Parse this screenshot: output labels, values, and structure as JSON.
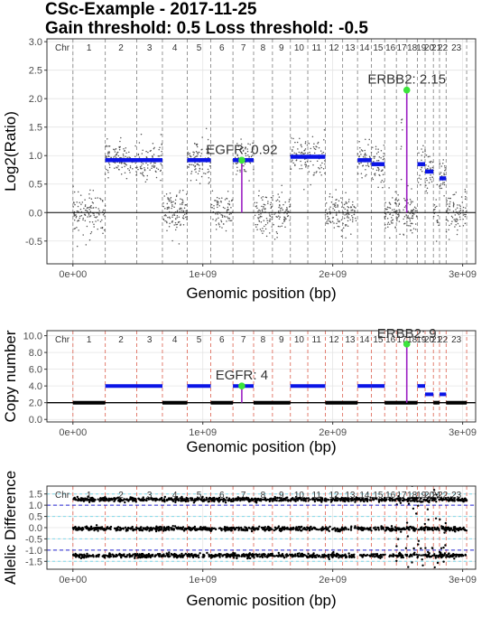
{
  "title_line1": "CSc-Example - 2017-11-25",
  "title_line2": "Gain threshold:  0.5  Loss threshold: -0.5",
  "chart_data": [
    {
      "type": "scatter",
      "panel": "log2ratio",
      "xlabel": "Genomic position (bp)",
      "ylabel": "Log2(Ratio)",
      "xlim": [
        -200000000,
        3100000000
      ],
      "ylim": [
        -0.9,
        3.05
      ],
      "xticks": [
        {
          "value": 0,
          "label": "0e+00"
        },
        {
          "value": 1000000000,
          "label": "1e+09"
        },
        {
          "value": 2000000000,
          "label": "2e+09"
        },
        {
          "value": 3000000000,
          "label": "3e+09"
        }
      ],
      "yticks": [
        {
          "value": -0.5,
          "label": "-0.5"
        },
        {
          "value": 0,
          "label": "0.0"
        },
        {
          "value": 0.5,
          "label": "0.5"
        },
        {
          "value": 1,
          "label": "1.0"
        },
        {
          "value": 1.5,
          "label": "1.5"
        },
        {
          "value": 2,
          "label": "2.0"
        },
        {
          "value": 2.5,
          "label": "2.5"
        },
        {
          "value": 3,
          "label": "3.0"
        }
      ],
      "segments": [
        {
          "start": 0,
          "end": 249000000,
          "value": 0
        },
        {
          "start": 249000000,
          "end": 491000000,
          "value": 0.92
        },
        {
          "start": 491000000,
          "end": 689000000,
          "value": 0.92
        },
        {
          "start": 689000000,
          "end": 880000000,
          "value": 0
        },
        {
          "start": 880000000,
          "end": 1061000000,
          "value": 0.92
        },
        {
          "start": 1061000000,
          "end": 1232000000,
          "value": 0
        },
        {
          "start": 1232000000,
          "end": 1391000000,
          "value": 0.92
        },
        {
          "start": 1391000000,
          "end": 1536000000,
          "value": 0
        },
        {
          "start": 1536000000,
          "end": 1674000000,
          "value": 0
        },
        {
          "start": 1674000000,
          "end": 1808000000,
          "value": 0.98
        },
        {
          "start": 1808000000,
          "end": 1943000000,
          "value": 0.98
        },
        {
          "start": 1943000000,
          "end": 2076000000,
          "value": 0
        },
        {
          "start": 2076000000,
          "end": 2191000000,
          "value": 0
        },
        {
          "start": 2191000000,
          "end": 2298000000,
          "value": 0.92
        },
        {
          "start": 2298000000,
          "end": 2400000000,
          "value": 0.85
        },
        {
          "start": 2400000000,
          "end": 2490000000,
          "value": 0
        },
        {
          "start": 2490000000,
          "end": 2571000000,
          "value": 0
        },
        {
          "start": 2571000000,
          "end": 2652000000,
          "value": 0
        },
        {
          "start": 2652000000,
          "end": 2711000000,
          "value": 0.85
        },
        {
          "start": 2711000000,
          "end": 2775000000,
          "value": 0.72
        },
        {
          "start": 2775000000,
          "end": 2822000000,
          "value": 0
        },
        {
          "start": 2822000000,
          "end": 2873000000,
          "value": 0.6
        },
        {
          "start": 2873000000,
          "end": 3031000000,
          "value": 0
        }
      ],
      "annotations": [
        {
          "label": "EGFR: 0.92",
          "x": 1300000000,
          "y": 0.92
        },
        {
          "label": "ERBB2: 2.15",
          "x": 2570000000,
          "y": 2.15
        }
      ]
    },
    {
      "type": "line",
      "panel": "copy_number",
      "xlabel": "Genomic position (bp)",
      "ylabel": "Copy number",
      "xlim": [
        -200000000,
        3100000000
      ],
      "ylim": [
        -0.3,
        10.6
      ],
      "xticks": [
        {
          "value": 0,
          "label": "0e+00"
        },
        {
          "value": 1000000000,
          "label": "1e+09"
        },
        {
          "value": 2000000000,
          "label": "2e+09"
        },
        {
          "value": 3000000000,
          "label": "3e+09"
        }
      ],
      "yticks": [
        {
          "value": 0,
          "label": "0.0"
        },
        {
          "value": 2,
          "label": "2.0"
        },
        {
          "value": 4,
          "label": "4.0"
        },
        {
          "value": 6,
          "label": "6.0"
        },
        {
          "value": 8,
          "label": "8.0"
        },
        {
          "value": 10,
          "label": "10.0"
        }
      ],
      "baseline": 2,
      "segments": [
        {
          "start": 0,
          "end": 249000000,
          "value": 2
        },
        {
          "start": 249000000,
          "end": 689000000,
          "value": 4
        },
        {
          "start": 689000000,
          "end": 880000000,
          "value": 2
        },
        {
          "start": 880000000,
          "end": 1061000000,
          "value": 4
        },
        {
          "start": 1061000000,
          "end": 1232000000,
          "value": 2
        },
        {
          "start": 1232000000,
          "end": 1391000000,
          "value": 4
        },
        {
          "start": 1391000000,
          "end": 1674000000,
          "value": 2
        },
        {
          "start": 1674000000,
          "end": 1943000000,
          "value": 4
        },
        {
          "start": 1943000000,
          "end": 2191000000,
          "value": 2
        },
        {
          "start": 2191000000,
          "end": 2298000000,
          "value": 4
        },
        {
          "start": 2298000000,
          "end": 2400000000,
          "value": 4
        },
        {
          "start": 2400000000,
          "end": 2652000000,
          "value": 2
        },
        {
          "start": 2652000000,
          "end": 2711000000,
          "value": 4
        },
        {
          "start": 2711000000,
          "end": 2775000000,
          "value": 3
        },
        {
          "start": 2775000000,
          "end": 2822000000,
          "value": 2
        },
        {
          "start": 2822000000,
          "end": 2873000000,
          "value": 3
        },
        {
          "start": 2873000000,
          "end": 3031000000,
          "value": 2
        }
      ],
      "annotations": [
        {
          "label": "EGFR: 4",
          "x": 1300000000,
          "y": 4
        },
        {
          "label": "ERBB2: 9",
          "x": 2570000000,
          "y": 9
        }
      ]
    },
    {
      "type": "scatter",
      "panel": "allelic_difference",
      "xlabel": "Genomic position (bp)",
      "ylabel": "Allelic Difference",
      "xlim": [
        -200000000,
        3100000000
      ],
      "ylim": [
        -1.85,
        1.85
      ],
      "xticks": [
        {
          "value": 0,
          "label": "0e+00"
        },
        {
          "value": 1000000000,
          "label": "1e+09"
        },
        {
          "value": 2000000000,
          "label": "2e+09"
        },
        {
          "value": 3000000000,
          "label": "3e+09"
        }
      ],
      "yticks": [
        {
          "value": -1.5,
          "label": "-1.5"
        },
        {
          "value": -1,
          "label": "-1.0"
        },
        {
          "value": -0.5,
          "label": "-0.5"
        },
        {
          "value": 0,
          "label": "0.0"
        },
        {
          "value": 0.5,
          "label": "0.5"
        },
        {
          "value": 1,
          "label": "1.0"
        },
        {
          "value": 1.5,
          "label": "1.5"
        }
      ],
      "bands": [
        -1.25,
        -0.05,
        1.25
      ],
      "reference_lines": [
        1,
        -1
      ]
    }
  ],
  "chromosomes": {
    "label": "Chr",
    "names": [
      "1",
      "2",
      "3",
      "4",
      "5",
      "6",
      "7",
      "8",
      "9",
      "10",
      "11",
      "12",
      "13",
      "14",
      "15",
      "16",
      "17",
      "18",
      "19",
      "20",
      "21",
      "22",
      "23"
    ],
    "starts": [
      0,
      249000000,
      491000000,
      689000000,
      880000000,
      1061000000,
      1232000000,
      1391000000,
      1536000000,
      1674000000,
      1808000000,
      1943000000,
      2076000000,
      2191000000,
      2298000000,
      2400000000,
      2490000000,
      2571000000,
      2652000000,
      2711000000,
      2775000000,
      2822000000,
      2873000000
    ],
    "genome_end": 3031000000
  },
  "colors": {
    "segment": "#0a14e6",
    "point": "#555555",
    "marker": "#3be43b",
    "stem": "#9b20c2",
    "divider_logratio": "#8c8c8c",
    "divider_other": "#e07060",
    "ref_line": "#2020d0",
    "band": "#7fd9ea"
  }
}
